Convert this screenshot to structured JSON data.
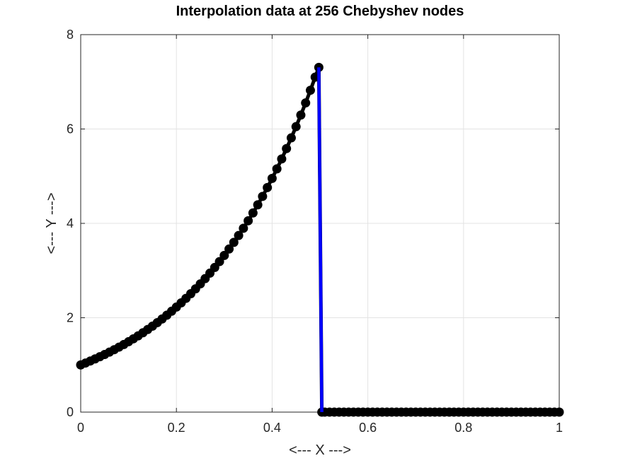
{
  "chart_data": {
    "type": "scatter",
    "title": "Interpolation data at 256 Chebyshev nodes",
    "xlabel": "<--- X --->",
    "ylabel": "<--- Y --->",
    "xlim": [
      0,
      1
    ],
    "ylim": [
      0,
      8
    ],
    "xticks": [
      0,
      0.2,
      0.4,
      0.6,
      0.8,
      1
    ],
    "xtick_labels": [
      "0",
      "0.2",
      "0.4",
      "0.6",
      "0.8",
      "1"
    ],
    "yticks": [
      0,
      2,
      4,
      6,
      8
    ],
    "ytick_labels": [
      "0",
      "2",
      "4",
      "6",
      "8"
    ],
    "grid": true,
    "legend": "none",
    "series": [
      {
        "kind": "line",
        "color": "#0000ff",
        "x": [
          0.4976,
          0.5039
        ],
        "y": [
          7.306,
          0
        ]
      },
      {
        "kind": "markers",
        "color": "#000000",
        "node_count": 256,
        "x": [
          0.0,
          0.01,
          0.02,
          0.03,
          0.04,
          0.05,
          0.06,
          0.07,
          0.08,
          0.09,
          0.1,
          0.11,
          0.12,
          0.13,
          0.14,
          0.15,
          0.16,
          0.17,
          0.18,
          0.19,
          0.2,
          0.21,
          0.22,
          0.23,
          0.24,
          0.25,
          0.26,
          0.27,
          0.28,
          0.29,
          0.3,
          0.31,
          0.32,
          0.33,
          0.34,
          0.35,
          0.36,
          0.37,
          0.38,
          0.39,
          0.4,
          0.41,
          0.42,
          0.43,
          0.44,
          0.45,
          0.46,
          0.47,
          0.48,
          0.49,
          0.4976,
          0.5039,
          0.51,
          0.52,
          0.53,
          0.54,
          0.55,
          0.56,
          0.57,
          0.58,
          0.59,
          0.6,
          0.61,
          0.62,
          0.63,
          0.64,
          0.65,
          0.66,
          0.67,
          0.68,
          0.69,
          0.7,
          0.71,
          0.72,
          0.73,
          0.74,
          0.75,
          0.76,
          0.77,
          0.78,
          0.79,
          0.8,
          0.81,
          0.82,
          0.83,
          0.84,
          0.85,
          0.86,
          0.87,
          0.88,
          0.89,
          0.9,
          0.91,
          0.92,
          0.93,
          0.94,
          0.95,
          0.96,
          0.97,
          0.98,
          0.99,
          1.0
        ],
        "y": [
          1.0,
          1.04,
          1.083,
          1.127,
          1.174,
          1.221,
          1.271,
          1.323,
          1.377,
          1.433,
          1.492,
          1.553,
          1.616,
          1.682,
          1.751,
          1.822,
          1.896,
          1.974,
          2.054,
          2.138,
          2.226,
          2.316,
          2.411,
          2.509,
          2.612,
          2.718,
          2.829,
          2.945,
          3.065,
          3.19,
          3.32,
          3.456,
          3.597,
          3.743,
          3.896,
          4.055,
          4.221,
          4.393,
          4.572,
          4.759,
          4.953,
          5.155,
          5.366,
          5.585,
          5.812,
          6.05,
          6.296,
          6.553,
          6.821,
          7.099,
          7.306,
          0,
          0,
          0,
          0,
          0,
          0,
          0,
          0,
          0,
          0,
          0,
          0,
          0,
          0,
          0,
          0,
          0,
          0,
          0,
          0,
          0,
          0,
          0,
          0,
          0,
          0,
          0,
          0,
          0,
          0,
          0,
          0,
          0,
          0,
          0,
          0,
          0,
          0,
          0,
          0,
          0,
          0,
          0,
          0,
          0,
          0,
          0,
          0,
          0,
          0,
          0
        ]
      }
    ]
  }
}
